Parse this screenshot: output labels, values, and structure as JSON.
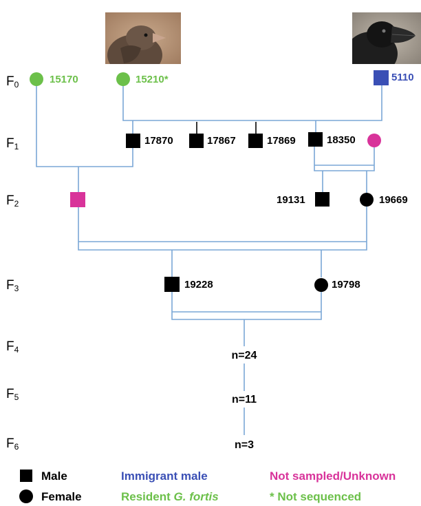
{
  "colors": {
    "resident": "#6cc04a",
    "immigrant": "#3a4fb5",
    "unknown": "#d8339a",
    "black": "#000000",
    "line": "#7aa7d6"
  },
  "generations": [
    {
      "base": "F",
      "sub": "0"
    },
    {
      "base": "F",
      "sub": "1"
    },
    {
      "base": "F",
      "sub": "2"
    },
    {
      "base": "F",
      "sub": "3"
    },
    {
      "base": "F",
      "sub": "4"
    },
    {
      "base": "F",
      "sub": "5"
    },
    {
      "base": "F",
      "sub": "6"
    }
  ],
  "f0": {
    "female_a": {
      "id": "15170"
    },
    "female_b": {
      "id": "15210*"
    },
    "immigrant_male": {
      "id": "5110"
    }
  },
  "f1": [
    {
      "id": "17870"
    },
    {
      "id": "17867"
    },
    {
      "id": "17869"
    },
    {
      "id": "18350"
    }
  ],
  "f2": [
    {
      "id": "19131"
    },
    {
      "id": "19669"
    }
  ],
  "f3": [
    {
      "id": "19228"
    },
    {
      "id": "19798"
    }
  ],
  "offspring": [
    {
      "label": "n=24"
    },
    {
      "label": "n=11"
    },
    {
      "label": "n=3"
    }
  ],
  "legend": {
    "male": "Male",
    "female": "Female",
    "immigrant": "Immigrant male",
    "resident_prefix": "Resident ",
    "resident_species": "G. fortis",
    "unknown": "Not sampled/Unknown",
    "not_sequenced": "* Not sequenced"
  }
}
